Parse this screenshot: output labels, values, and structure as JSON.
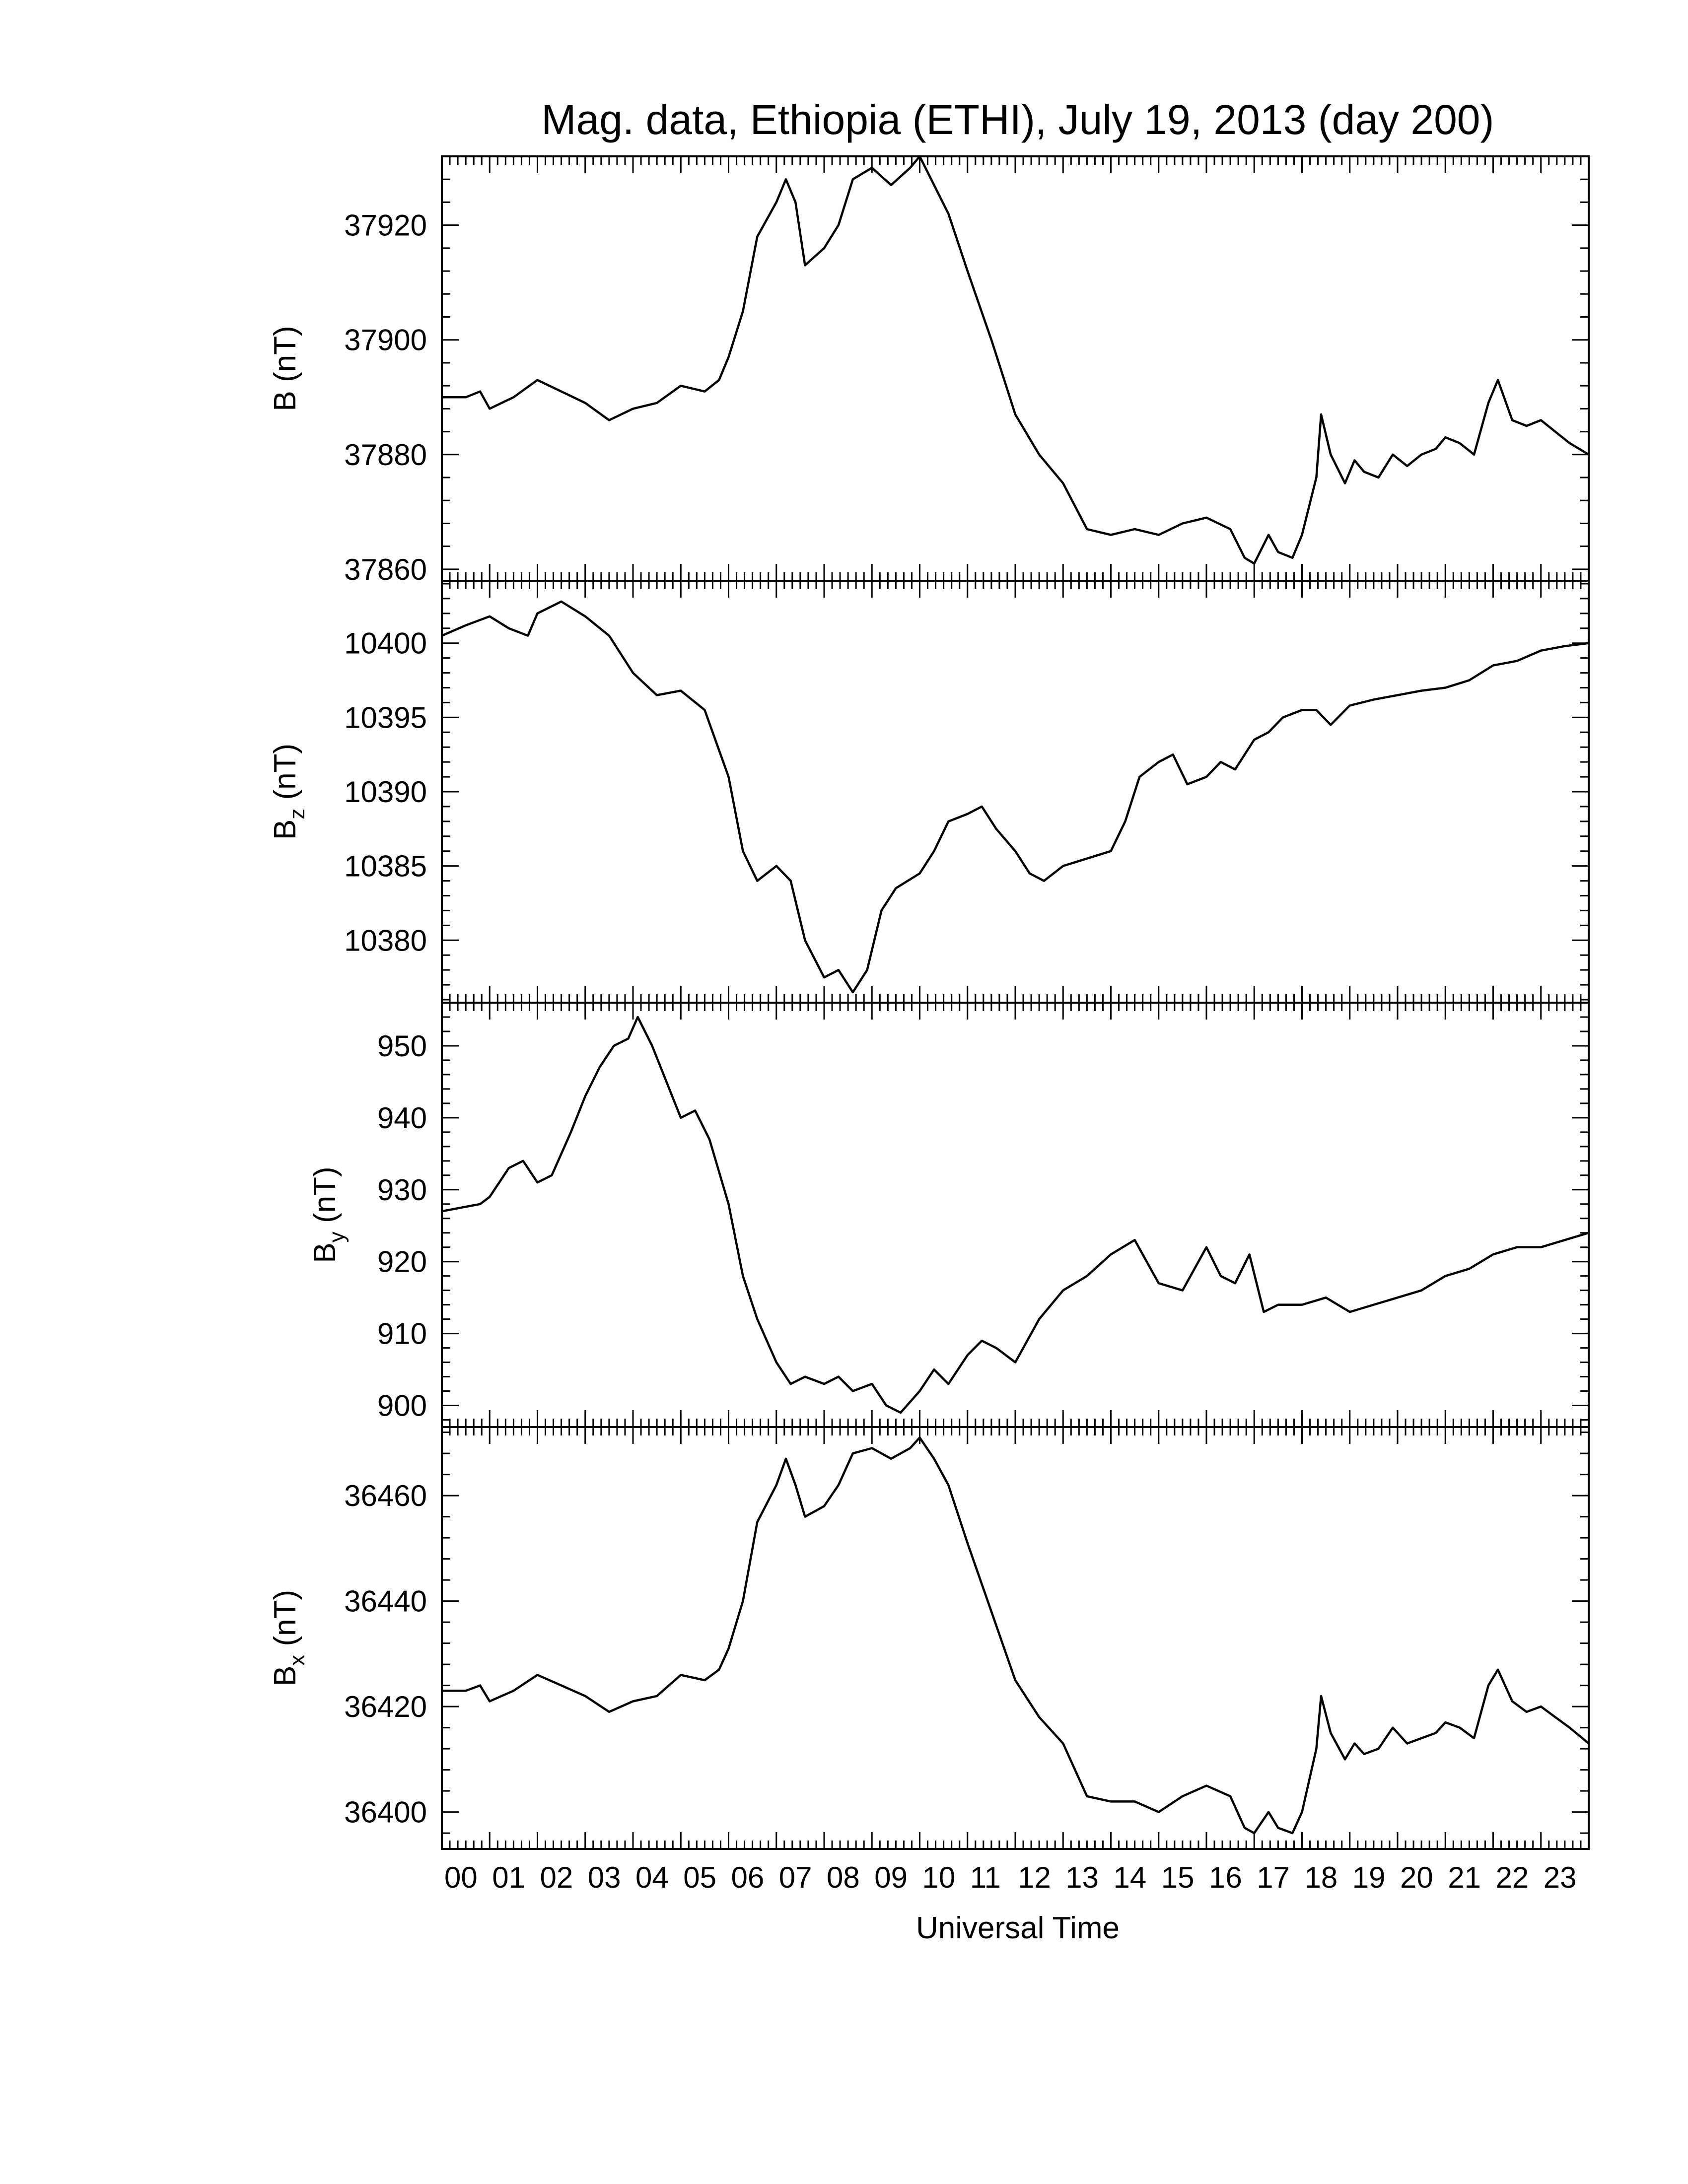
{
  "chart_data": {
    "type": "line",
    "title": "Mag. data, Ethiopia (ETHI), July 19, 2013 (day 200)",
    "xlabel": "Universal Time",
    "x_tick_labels": [
      "00",
      "01",
      "02",
      "03",
      "04",
      "05",
      "06",
      "07",
      "08",
      "09",
      "10",
      "11",
      "12",
      "13",
      "14",
      "15",
      "16",
      "17",
      "18",
      "19",
      "20",
      "21",
      "22",
      "23"
    ],
    "xlim": [
      0,
      24
    ],
    "grid": false,
    "panels": [
      {
        "ylabel": "B (nT)",
        "ylabel_main": "B",
        "ylabel_sub": "",
        "ylabel_unit": " (nT)",
        "ylim": [
          37858,
          37932
        ],
        "y_ticks": [
          37860,
          37880,
          37900,
          37920
        ],
        "y_tick_labels": [
          "37860",
          "37880",
          "37900",
          "37920"
        ],
        "series": [
          {
            "x": [
              0,
              0.5,
              0.8,
              1,
              1.5,
              2,
              2.5,
              3,
              3.5,
              4,
              4.5,
              5,
              5.5,
              5.8,
              6,
              6.3,
              6.6,
              7,
              7.2,
              7.4,
              7.6,
              8,
              8.3,
              8.6,
              9,
              9.4,
              9.8,
              10,
              10.3,
              10.6,
              11,
              11.5,
              12,
              12.5,
              13,
              13.5,
              14,
              14.5,
              15,
              15.5,
              16,
              16.5,
              16.8,
              17,
              17.3,
              17.5,
              17.8,
              18,
              18.3,
              18.4,
              18.6,
              18.9,
              19.1,
              19.3,
              19.6,
              19.9,
              20.2,
              20.5,
              20.8,
              21,
              21.3,
              21.6,
              21.9,
              22.1,
              22.4,
              22.7,
              23,
              23.3,
              23.6,
              24
            ],
            "y": [
              37890,
              37890,
              37891,
              37888,
              37890,
              37893,
              37891,
              37889,
              37886,
              37888,
              37889,
              37892,
              37891,
              37893,
              37897,
              37905,
              37918,
              37924,
              37928,
              37924,
              37913,
              37916,
              37920,
              37928,
              37930,
              37927,
              37930,
              37932,
              37927,
              37922,
              37912,
              37900,
              37887,
              37880,
              37875,
              37867,
              37866,
              37867,
              37866,
              37868,
              37869,
              37867,
              37862,
              37861,
              37866,
              37863,
              37862,
              37866,
              37876,
              37887,
              37880,
              37875,
              37879,
              37877,
              37876,
              37880,
              37878,
              37880,
              37881,
              37883,
              37882,
              37880,
              37889,
              37893,
              37886,
              37885,
              37886,
              37884,
              37882,
              37880
            ]
          }
        ]
      },
      {
        "ylabel": "Bz (nT)",
        "ylabel_main": "B",
        "ylabel_sub": "z",
        "ylabel_unit": " (nT)",
        "ylim": [
          10375.8,
          10404.2
        ],
        "y_ticks": [
          10380,
          10385,
          10390,
          10395,
          10400
        ],
        "y_tick_labels": [
          "10380",
          "10385",
          "10390",
          "10395",
          "10400"
        ],
        "series": [
          {
            "x": [
              0,
              0.5,
              1,
              1.4,
              1.8,
              2,
              2.5,
              3,
              3.5,
              4,
              4.5,
              5,
              5.5,
              6,
              6.3,
              6.6,
              7,
              7.3,
              7.6,
              8,
              8.3,
              8.6,
              8.9,
              9.2,
              9.5,
              10,
              10.3,
              10.6,
              11,
              11.3,
              11.6,
              12,
              12.3,
              12.6,
              13,
              13.5,
              14,
              14.3,
              14.6,
              15,
              15.3,
              15.6,
              16,
              16.3,
              16.6,
              17,
              17.3,
              17.6,
              18,
              18.3,
              18.6,
              19,
              19.5,
              20,
              20.5,
              21,
              21.5,
              22,
              22.5,
              23,
              23.5,
              24
            ],
            "y": [
              10400.5,
              10401.2,
              10401.8,
              10401,
              10400.5,
              10402,
              10402.8,
              10401.8,
              10400.5,
              10398,
              10396.5,
              10396.8,
              10395.5,
              10391,
              10386,
              10384,
              10385,
              10384,
              10380,
              10377.5,
              10378,
              10376.5,
              10378,
              10382,
              10383.5,
              10384.5,
              10386,
              10388,
              10388.5,
              10389,
              10387.5,
              10386,
              10384.5,
              10384,
              10385,
              10385.5,
              10386,
              10388,
              10391,
              10392,
              10392.5,
              10390.5,
              10391,
              10392,
              10391.5,
              10393.5,
              10394,
              10395,
              10395.5,
              10395.5,
              10394.5,
              10395.8,
              10396.2,
              10396.5,
              10396.8,
              10397,
              10397.5,
              10398.5,
              10398.8,
              10399.5,
              10399.8,
              10400
            ]
          }
        ]
      },
      {
        "ylabel": "By (nT)",
        "ylabel_main": "B",
        "ylabel_sub": "y",
        "ylabel_unit": " (nT)",
        "ylim": [
          897,
          956
        ],
        "y_ticks": [
          900,
          910,
          920,
          930,
          940,
          950
        ],
        "y_tick_labels": [
          "900",
          "910",
          "920",
          "930",
          "940",
          "950"
        ],
        "series": [
          {
            "x": [
              0,
              0.4,
              0.8,
              1,
              1.4,
              1.7,
              2,
              2.3,
              2.7,
              3,
              3.3,
              3.6,
              3.9,
              4.1,
              4.4,
              4.7,
              5,
              5.3,
              5.6,
              6,
              6.3,
              6.6,
              7,
              7.3,
              7.6,
              8,
              8.3,
              8.6,
              9,
              9.3,
              9.6,
              10,
              10.3,
              10.6,
              11,
              11.3,
              11.6,
              12,
              12.5,
              13,
              13.5,
              14,
              14.5,
              15,
              15.5,
              16,
              16.3,
              16.6,
              16.9,
              17.2,
              17.5,
              18,
              18.5,
              19,
              19.5,
              20,
              20.5,
              21,
              21.5,
              22,
              22.5,
              23,
              23.5,
              24
            ],
            "y": [
              927,
              927.5,
              928,
              929,
              933,
              934,
              931,
              932,
              938,
              943,
              947,
              950,
              951,
              954,
              950,
              945,
              940,
              941,
              937,
              928,
              918,
              912,
              906,
              903,
              904,
              903,
              904,
              902,
              903,
              900,
              899,
              902,
              905,
              903,
              907,
              909,
              908,
              906,
              912,
              916,
              918,
              921,
              923,
              917,
              916,
              922,
              918,
              917,
              921,
              913,
              914,
              914,
              915,
              913,
              914,
              915,
              916,
              918,
              919,
              921,
              922,
              922,
              923,
              924
            ]
          }
        ]
      },
      {
        "ylabel": "Bx (nT)",
        "ylabel_main": "B",
        "ylabel_sub": "x",
        "ylabel_unit": " (nT)",
        "ylim": [
          36393,
          36473
        ],
        "y_ticks": [
          36400,
          36420,
          36440,
          36460
        ],
        "y_tick_labels": [
          "36400",
          "36420",
          "36440",
          "36460"
        ],
        "series": [
          {
            "x": [
              0,
              0.5,
              0.8,
              1,
              1.5,
              2,
              2.5,
              3,
              3.5,
              4,
              4.5,
              5,
              5.5,
              5.8,
              6,
              6.3,
              6.6,
              7,
              7.2,
              7.4,
              7.6,
              8,
              8.3,
              8.6,
              9,
              9.4,
              9.8,
              10,
              10.3,
              10.6,
              11,
              11.5,
              12,
              12.5,
              13,
              13.5,
              14,
              14.5,
              15,
              15.5,
              16,
              16.5,
              16.8,
              17,
              17.3,
              17.5,
              17.8,
              18,
              18.3,
              18.4,
              18.6,
              18.9,
              19.1,
              19.3,
              19.6,
              19.9,
              20.2,
              20.5,
              20.8,
              21,
              21.3,
              21.6,
              21.9,
              22.1,
              22.4,
              22.7,
              23,
              23.3,
              23.6,
              24
            ],
            "y": [
              36423,
              36423,
              36424,
              36421,
              36423,
              36426,
              36424,
              36422,
              36419,
              36421,
              36422,
              36426,
              36425,
              36427,
              36431,
              36440,
              36455,
              36462,
              36467,
              36462,
              36456,
              36458,
              36462,
              36468,
              36469,
              36467,
              36469,
              36471,
              36467,
              36462,
              36451,
              36438,
              36425,
              36418,
              36413,
              36403,
              36402,
              36402,
              36400,
              36403,
              36405,
              36403,
              36397,
              36396,
              36400,
              36397,
              36396,
              36400,
              36412,
              36422,
              36415,
              36410,
              36413,
              36411,
              36412,
              36416,
              36413,
              36414,
              36415,
              36417,
              36416,
              36414,
              36424,
              36427,
              36421,
              36419,
              36420,
              36418,
              36416,
              36413
            ]
          }
        ]
      }
    ]
  }
}
